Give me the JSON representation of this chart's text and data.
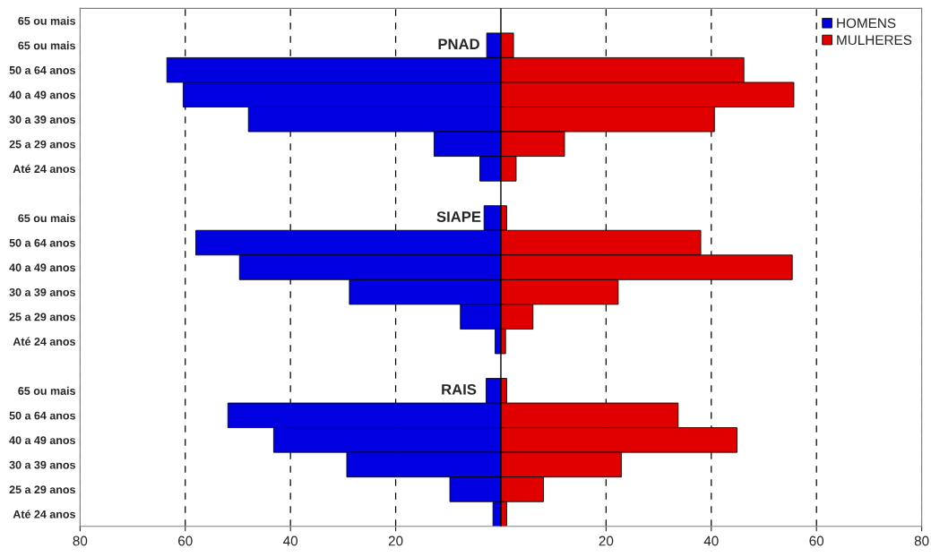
{
  "chart_data": {
    "type": "bar",
    "orientation": "horizontal",
    "stacked": true,
    "categories": [
      "65 ou mais",
      "65 ou mais",
      "50 a 64 anos",
      "40 a 49 anos",
      "30 a 39 anos",
      "25 a 29 anos",
      "Até 24 anos",
      null,
      "65 ou mais",
      "50 a 64 anos",
      "40 a 49 anos",
      "30 a 39 anos",
      "25 a 29 anos",
      "Até 24 anos",
      null,
      "65 ou mais",
      "50 a 64 anos",
      "40 a 49 anos",
      "30 a 39 anos",
      "25 a 29 anos",
      "Até 24 anos"
    ],
    "series": [
      {
        "name": "HOMENS",
        "color": "#0000e0",
        "values": [
          null,
          -2.7,
          -63.5,
          -60.4,
          -48.0,
          -12.7,
          -4.0,
          null,
          -3.2,
          -58.0,
          -49.7,
          -28.8,
          -7.7,
          -1.1,
          null,
          -2.8,
          -51.9,
          -43.2,
          -29.3,
          -9.7,
          -1.5
        ]
      },
      {
        "name": "MULHERES",
        "color": "#e00000",
        "values": [
          null,
          2.4,
          46.2,
          55.7,
          40.6,
          12.1,
          2.9,
          null,
          1.1,
          38.0,
          55.4,
          22.3,
          6.1,
          0.9,
          null,
          1.1,
          33.7,
          44.9,
          22.9,
          8.1,
          1.1
        ]
      }
    ],
    "annotations": [
      "PNAD",
      "SIAPE",
      "RAIS"
    ],
    "xlim": [
      -80,
      80
    ],
    "xticks": [
      {
        "value": -80,
        "label": "80"
      },
      {
        "value": -60,
        "label": "60"
      },
      {
        "value": -40,
        "label": "40"
      },
      {
        "value": -20,
        "label": "20"
      },
      20,
      40,
      60,
      80
    ],
    "ref_lines": [
      {
        "axis": "x",
        "value": 0,
        "color": "#000000",
        "line_style": "solid"
      }
    ],
    "grid": "x",
    "legend": "top right"
  }
}
